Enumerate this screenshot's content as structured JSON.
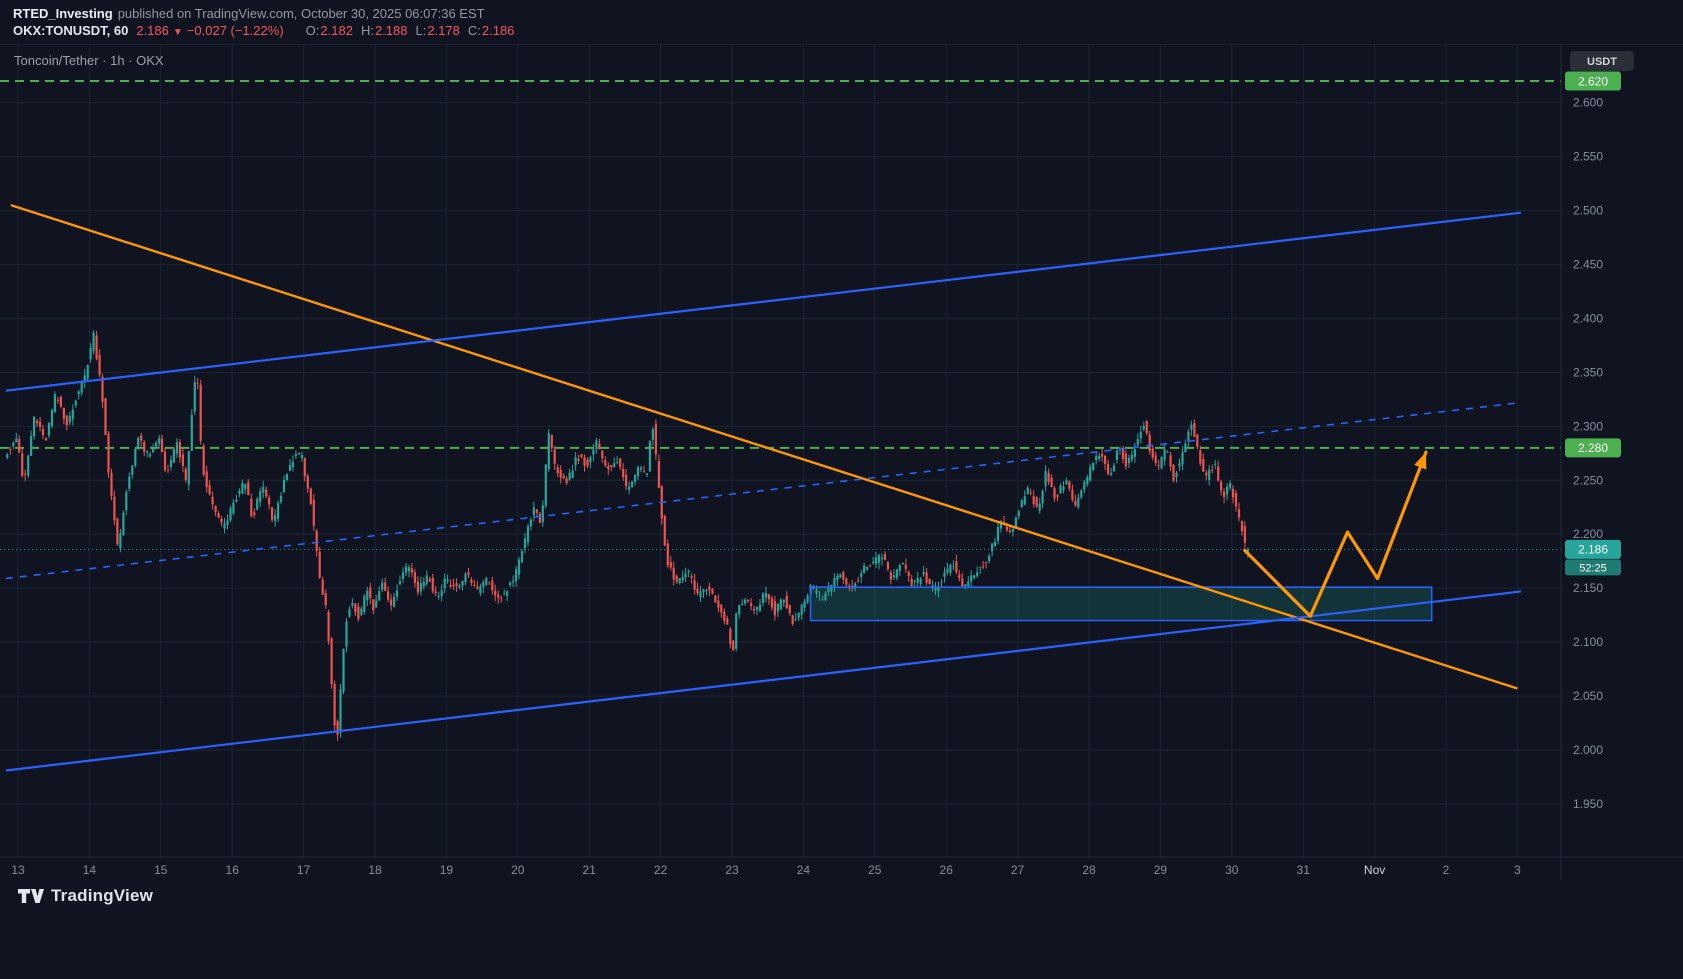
{
  "publish_header": {
    "author": "RTED_Investing",
    "published_text": "published on TradingView.com, October 30, 2025 06:07:36 EST"
  },
  "symbol_bar": {
    "symbol_interval": "OKX:TONUSDT, 60",
    "last_price": "2.186",
    "direction_icon": "▼",
    "change": "−0.027 (−1.22%)",
    "ohlc": [
      {
        "label": "O:",
        "value": "2.182"
      },
      {
        "label": "H:",
        "value": "2.188"
      },
      {
        "label": "L:",
        "value": "2.178"
      },
      {
        "label": "C:",
        "value": "2.186"
      }
    ]
  },
  "pane": {
    "legend": "Toncoin/Tether · 1h · OKX"
  },
  "price_axis": {
    "currency_label": "USDT"
  },
  "footer": {
    "brand": "TradingView"
  },
  "chart_data": {
    "type": "candlestick",
    "title": "Toncoin/Tether · 1h · OKX",
    "symbol": "OKX:TONUSDT",
    "interval_minutes": 60,
    "current": {
      "open": 2.182,
      "high": 2.188,
      "low": 2.178,
      "close": 2.186,
      "change": -0.027,
      "change_pct": -1.22,
      "countdown": "52:25",
      "price_label": "2.186"
    },
    "y_axis": {
      "ticks": [
        2.6,
        2.55,
        2.5,
        2.45,
        2.4,
        2.35,
        2.3,
        2.25,
        2.2,
        2.15,
        2.1,
        2.05,
        2.0,
        1.95
      ],
      "min": 1.93,
      "max": 2.653
    },
    "x_axis": {
      "labels": [
        {
          "text": "13",
          "day": 13
        },
        {
          "text": "14",
          "day": 14
        },
        {
          "text": "15",
          "day": 15
        },
        {
          "text": "16",
          "day": 16
        },
        {
          "text": "17",
          "day": 17
        },
        {
          "text": "18",
          "day": 18
        },
        {
          "text": "19",
          "day": 19
        },
        {
          "text": "20",
          "day": 20
        },
        {
          "text": "21",
          "day": 21
        },
        {
          "text": "22",
          "day": 22
        },
        {
          "text": "23",
          "day": 23
        },
        {
          "text": "24",
          "day": 24
        },
        {
          "text": "25",
          "day": 25
        },
        {
          "text": "26",
          "day": 26
        },
        {
          "text": "27",
          "day": 27
        },
        {
          "text": "28",
          "day": 28
        },
        {
          "text": "29",
          "day": 29
        },
        {
          "text": "30",
          "day": 30
        },
        {
          "text": "31",
          "day": 31
        },
        {
          "text": "Nov",
          "day": 32,
          "emph": true
        },
        {
          "text": "2",
          "day": 33
        },
        {
          "text": "3",
          "day": 34
        }
      ]
    },
    "levels": [
      {
        "price": 2.62,
        "label": "2.620",
        "color": "#4caf50",
        "style": "dashed"
      },
      {
        "price": 2.28,
        "label": "2.280",
        "color": "#4caf50",
        "style": "dashed"
      }
    ],
    "trendlines": [
      {
        "name": "descending-resistance-orange",
        "color": "#ff9800",
        "width": 2.4,
        "p1": [
          12.9,
          2.505
        ],
        "p2": [
          34.0,
          2.057
        ]
      },
      {
        "name": "channel-top-blue",
        "color": "#2962ff",
        "width": 2.2,
        "p1": [
          12.83,
          2.333
        ],
        "p2": [
          34.05,
          2.498
        ]
      },
      {
        "name": "channel-bottom-blue",
        "color": "#2962ff",
        "width": 2.2,
        "p1": [
          12.83,
          1.981
        ],
        "p2": [
          34.05,
          2.147
        ]
      },
      {
        "name": "channel-mid-blue-dashed",
        "color": "#2962ff",
        "width": 1.6,
        "dash": "7 7",
        "p1": [
          12.83,
          2.159
        ],
        "p2": [
          34.05,
          2.322
        ]
      }
    ],
    "zone": {
      "day_start": 24.1,
      "day_end": 32.8,
      "price_top": 2.151,
      "price_bottom": 2.12,
      "fill": "rgba(38,166,154,0.22)",
      "stroke": "#2962ff"
    },
    "projection_arrow": {
      "color": "#ff9800",
      "points": [
        [
          30.18,
          2.185
        ],
        [
          31.1,
          2.124
        ],
        [
          31.62,
          2.202
        ],
        [
          32.04,
          2.159
        ],
        [
          32.72,
          2.276
        ]
      ]
    },
    "price_path_anchors": [
      [
        12.8,
        2.27
      ],
      [
        13.0,
        2.29
      ],
      [
        13.1,
        2.245
      ],
      [
        13.25,
        2.31
      ],
      [
        13.4,
        2.285
      ],
      [
        13.55,
        2.33
      ],
      [
        13.7,
        2.3
      ],
      [
        13.82,
        2.325
      ],
      [
        13.95,
        2.345
      ],
      [
        14.08,
        2.385
      ],
      [
        14.2,
        2.33
      ],
      [
        14.3,
        2.25
      ],
      [
        14.42,
        2.185
      ],
      [
        14.55,
        2.245
      ],
      [
        14.7,
        2.29
      ],
      [
        14.85,
        2.27
      ],
      [
        15.0,
        2.29
      ],
      [
        15.1,
        2.255
      ],
      [
        15.25,
        2.285
      ],
      [
        15.38,
        2.245
      ],
      [
        15.46,
        2.315
      ],
      [
        15.52,
        2.36
      ],
      [
        15.6,
        2.26
      ],
      [
        15.75,
        2.225
      ],
      [
        15.9,
        2.205
      ],
      [
        16.05,
        2.23
      ],
      [
        16.2,
        2.25
      ],
      [
        16.3,
        2.215
      ],
      [
        16.45,
        2.245
      ],
      [
        16.6,
        2.21
      ],
      [
        16.75,
        2.25
      ],
      [
        16.9,
        2.275
      ],
      [
        17.0,
        2.27
      ],
      [
        17.12,
        2.23
      ],
      [
        17.25,
        2.155
      ],
      [
        17.35,
        2.125
      ],
      [
        17.44,
        2.03
      ],
      [
        17.5,
        2.015
      ],
      [
        17.6,
        2.115
      ],
      [
        17.7,
        2.14
      ],
      [
        17.8,
        2.12
      ],
      [
        17.9,
        2.15
      ],
      [
        18.0,
        2.13
      ],
      [
        18.12,
        2.155
      ],
      [
        18.25,
        2.135
      ],
      [
        18.4,
        2.165
      ],
      [
        18.5,
        2.172
      ],
      [
        18.62,
        2.148
      ],
      [
        18.75,
        2.162
      ],
      [
        18.9,
        2.14
      ],
      [
        19.0,
        2.158
      ],
      [
        19.15,
        2.15
      ],
      [
        19.3,
        2.162
      ],
      [
        19.45,
        2.148
      ],
      [
        19.6,
        2.158
      ],
      [
        19.75,
        2.138
      ],
      [
        19.9,
        2.152
      ],
      [
        20.0,
        2.165
      ],
      [
        20.12,
        2.195
      ],
      [
        20.25,
        2.225
      ],
      [
        20.35,
        2.21
      ],
      [
        20.45,
        2.292
      ],
      [
        20.55,
        2.26
      ],
      [
        20.7,
        2.248
      ],
      [
        20.85,
        2.272
      ],
      [
        21.0,
        2.265
      ],
      [
        21.12,
        2.285
      ],
      [
        21.25,
        2.26
      ],
      [
        21.4,
        2.27
      ],
      [
        21.55,
        2.242
      ],
      [
        21.7,
        2.262
      ],
      [
        21.82,
        2.252
      ],
      [
        21.9,
        2.308
      ],
      [
        22.0,
        2.24
      ],
      [
        22.1,
        2.175
      ],
      [
        22.25,
        2.155
      ],
      [
        22.4,
        2.165
      ],
      [
        22.55,
        2.142
      ],
      [
        22.7,
        2.152
      ],
      [
        22.85,
        2.128
      ],
      [
        22.98,
        2.112
      ],
      [
        23.02,
        2.078
      ],
      [
        23.08,
        2.128
      ],
      [
        23.2,
        2.142
      ],
      [
        23.35,
        2.128
      ],
      [
        23.5,
        2.148
      ],
      [
        23.62,
        2.128
      ],
      [
        23.75,
        2.142
      ],
      [
        23.88,
        2.118
      ],
      [
        24.0,
        2.132
      ],
      [
        24.12,
        2.152
      ],
      [
        24.28,
        2.138
      ],
      [
        24.42,
        2.155
      ],
      [
        24.55,
        2.162
      ],
      [
        24.7,
        2.148
      ],
      [
        24.85,
        2.168
      ],
      [
        25.0,
        2.172
      ],
      [
        25.12,
        2.182
      ],
      [
        25.25,
        2.158
      ],
      [
        25.4,
        2.172
      ],
      [
        25.55,
        2.152
      ],
      [
        25.7,
        2.162
      ],
      [
        25.85,
        2.148
      ],
      [
        26.0,
        2.162
      ],
      [
        26.12,
        2.172
      ],
      [
        26.25,
        2.152
      ],
      [
        26.4,
        2.162
      ],
      [
        26.55,
        2.172
      ],
      [
        26.68,
        2.192
      ],
      [
        26.8,
        2.212
      ],
      [
        26.92,
        2.202
      ],
      [
        27.05,
        2.225
      ],
      [
        27.18,
        2.242
      ],
      [
        27.3,
        2.222
      ],
      [
        27.42,
        2.258
      ],
      [
        27.55,
        2.232
      ],
      [
        27.7,
        2.252
      ],
      [
        27.82,
        2.225
      ],
      [
        27.95,
        2.245
      ],
      [
        28.05,
        2.262
      ],
      [
        28.18,
        2.275
      ],
      [
        28.3,
        2.252
      ],
      [
        28.45,
        2.282
      ],
      [
        28.55,
        2.262
      ],
      [
        28.68,
        2.285
      ],
      [
        28.78,
        2.305
      ],
      [
        28.9,
        2.272
      ],
      [
        29.0,
        2.262
      ],
      [
        29.1,
        2.282
      ],
      [
        29.2,
        2.252
      ],
      [
        29.32,
        2.272
      ],
      [
        29.45,
        2.305
      ],
      [
        29.55,
        2.275
      ],
      [
        29.65,
        2.252
      ],
      [
        29.78,
        2.265
      ],
      [
        29.88,
        2.235
      ],
      [
        30.0,
        2.245
      ],
      [
        30.08,
        2.225
      ],
      [
        30.16,
        2.205
      ],
      [
        30.25,
        2.186
      ]
    ],
    "colors": {
      "up": "#26a69a",
      "down": "#ef5350",
      "grid": "#1c2333",
      "axis_text": "#868d9b",
      "axis_text_bright": "#d1d4dc",
      "level_green": "#4caf50",
      "blue": "#2962ff",
      "orange": "#ff9800",
      "bg": "#0f1420",
      "badge_current_bg": "#26a69a",
      "badge_countdown_bg": "#1f7a71",
      "currency_chip_bg": "#2a2e39",
      "separator": "#232a3a"
    }
  }
}
